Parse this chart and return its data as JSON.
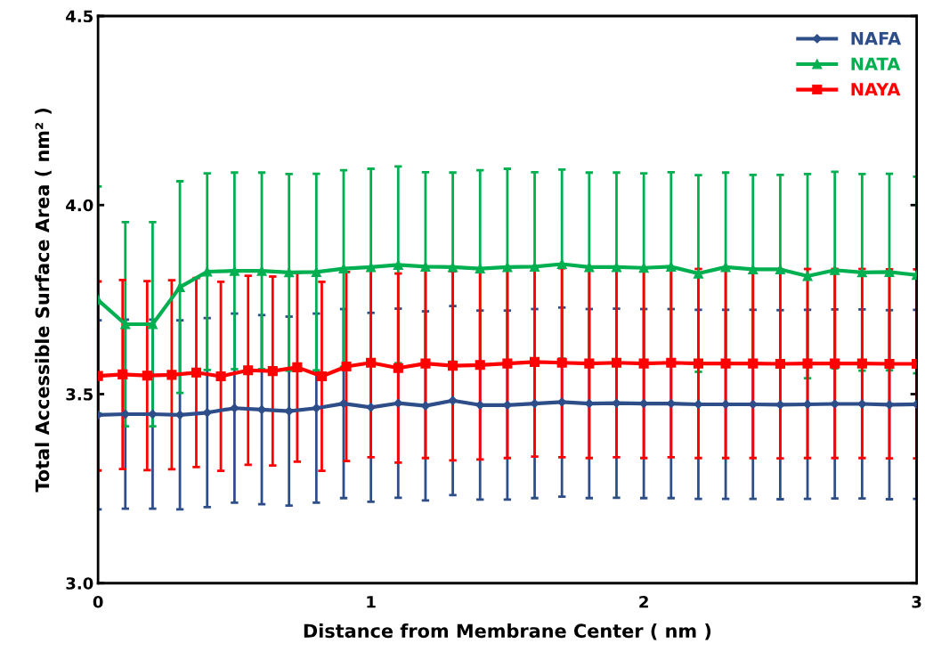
{
  "chart_data": {
    "type": "line",
    "xlabel": "Distance from Membrane Center ( nm )",
    "ylabel": "Total Accessible Surface Area ( nm² )",
    "xlim": [
      0,
      3
    ],
    "xticks": [
      0,
      1,
      2,
      3
    ],
    "ylim": [
      3,
      4.5
    ],
    "yticks": [
      {
        "value": 3,
        "label": "3.0"
      },
      {
        "value": 3.5,
        "label": "3.5"
      },
      {
        "value": 4,
        "label": "4.0"
      },
      {
        "value": 4.5,
        "label": "4.5"
      }
    ],
    "grid": false,
    "legend": "top right",
    "series": [
      {
        "name": "NAFA",
        "color": "#2e4e8a",
        "marker": "diamond",
        "x": [
          0,
          0.1,
          0.2,
          0.3,
          0.4,
          0.5,
          0.6,
          0.7,
          0.8,
          0.9,
          1.0,
          1.1,
          1.2,
          1.3,
          1.4,
          1.5,
          1.6,
          1.7,
          1.8,
          1.9,
          2.0,
          2.1,
          2.2,
          2.3,
          2.4,
          2.5,
          2.6,
          2.7,
          2.8,
          2.9,
          3.0
        ],
        "values": [
          3.445,
          3.447,
          3.447,
          3.445,
          3.451,
          3.463,
          3.459,
          3.455,
          3.463,
          3.475,
          3.465,
          3.476,
          3.469,
          3.483,
          3.471,
          3.471,
          3.475,
          3.479,
          3.475,
          3.476,
          3.475,
          3.475,
          3.473,
          3.473,
          3.473,
          3.472,
          3.473,
          3.474,
          3.474,
          3.472,
          3.473
        ],
        "errors": [
          0.25,
          0.25,
          0.25,
          0.25,
          0.25,
          0.25,
          0.25,
          0.25,
          0.25,
          0.25,
          0.25,
          0.25,
          0.25,
          0.25,
          0.25,
          0.25,
          0.25,
          0.25,
          0.25,
          0.25,
          0.25,
          0.25,
          0.25,
          0.25,
          0.25,
          0.25,
          0.25,
          0.25,
          0.25,
          0.25,
          0.25
        ]
      },
      {
        "name": "NATA",
        "color": "#00b050",
        "marker": "triangle",
        "x": [
          0,
          0.1,
          0.2,
          0.3,
          0.4,
          0.5,
          0.6,
          0.7,
          0.8,
          0.9,
          1.0,
          1.1,
          1.2,
          1.3,
          1.4,
          1.5,
          1.6,
          1.7,
          1.8,
          1.9,
          2.0,
          2.1,
          2.2,
          2.3,
          2.4,
          2.5,
          2.6,
          2.7,
          2.8,
          2.9,
          3.0
        ],
        "values": [
          3.749,
          3.685,
          3.685,
          3.783,
          3.824,
          3.826,
          3.826,
          3.822,
          3.823,
          3.832,
          3.836,
          3.842,
          3.837,
          3.836,
          3.832,
          3.836,
          3.837,
          3.844,
          3.836,
          3.836,
          3.834,
          3.837,
          3.819,
          3.836,
          3.83,
          3.83,
          3.812,
          3.828,
          3.822,
          3.823,
          3.815
        ],
        "errors": [
          0.3,
          0.27,
          0.27,
          0.28,
          0.26,
          0.26,
          0.26,
          0.26,
          0.26,
          0.26,
          0.26,
          0.26,
          0.25,
          0.25,
          0.26,
          0.26,
          0.25,
          0.25,
          0.25,
          0.25,
          0.25,
          0.25,
          0.26,
          0.25,
          0.25,
          0.25,
          0.27,
          0.26,
          0.26,
          0.26,
          0.26
        ]
      },
      {
        "name": "NAYA",
        "color": "#ff0000",
        "marker": "square",
        "x": [
          0,
          0.09,
          0.18,
          0.27,
          0.36,
          0.45,
          0.55,
          0.64,
          0.73,
          0.82,
          0.91,
          1.0,
          1.1,
          1.2,
          1.3,
          1.4,
          1.5,
          1.6,
          1.7,
          1.8,
          1.9,
          2.0,
          2.1,
          2.2,
          2.3,
          2.4,
          2.5,
          2.6,
          2.7,
          2.8,
          2.9,
          3.0
        ],
        "values": [
          3.548,
          3.552,
          3.549,
          3.551,
          3.557,
          3.547,
          3.563,
          3.561,
          3.571,
          3.547,
          3.573,
          3.583,
          3.569,
          3.581,
          3.575,
          3.577,
          3.581,
          3.585,
          3.583,
          3.581,
          3.583,
          3.581,
          3.583,
          3.581,
          3.581,
          3.581,
          3.58,
          3.581,
          3.581,
          3.581,
          3.58,
          3.58
        ],
        "errors": [
          0.25,
          0.25,
          0.25,
          0.25,
          0.25,
          0.25,
          0.25,
          0.25,
          0.25,
          0.25,
          0.25,
          0.25,
          0.25,
          0.25,
          0.25,
          0.25,
          0.25,
          0.25,
          0.25,
          0.25,
          0.25,
          0.25,
          0.25,
          0.25,
          0.25,
          0.25,
          0.25,
          0.25,
          0.25,
          0.25,
          0.25,
          0.25
        ]
      }
    ]
  }
}
